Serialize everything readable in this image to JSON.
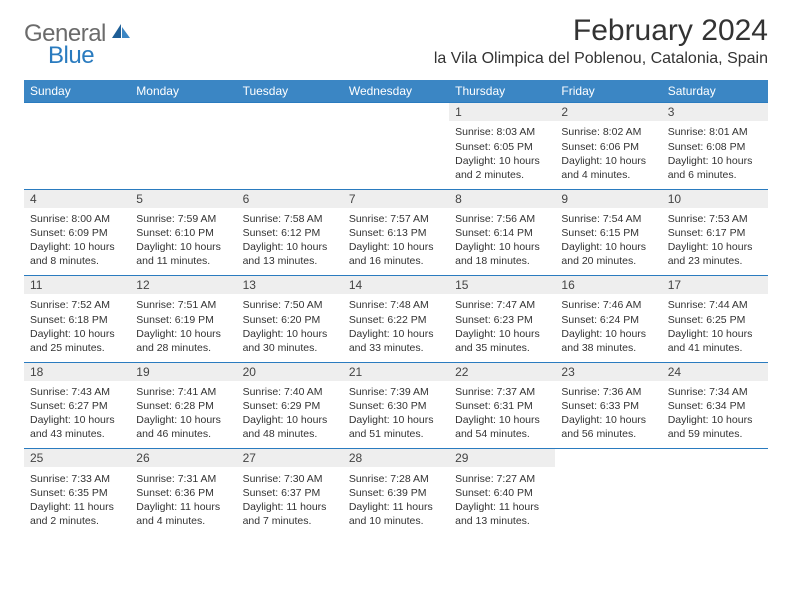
{
  "logo": {
    "word1": "General",
    "word2": "Blue"
  },
  "title": "February 2024",
  "location": "la Vila Olimpica del Poblenou, Catalonia, Spain",
  "colors": {
    "header_bg": "#3b86c4",
    "header_text": "#ffffff",
    "daynum_bg": "#eeeeee",
    "border": "#2a7bbf",
    "logo_gray": "#6b6b6b",
    "logo_blue": "#2a7bbf",
    "body_text": "#333333"
  },
  "day_headers": [
    "Sunday",
    "Monday",
    "Tuesday",
    "Wednesday",
    "Thursday",
    "Friday",
    "Saturday"
  ],
  "weeks": [
    [
      {
        "num": "",
        "sunrise": "",
        "sunset": "",
        "daylight": ""
      },
      {
        "num": "",
        "sunrise": "",
        "sunset": "",
        "daylight": ""
      },
      {
        "num": "",
        "sunrise": "",
        "sunset": "",
        "daylight": ""
      },
      {
        "num": "",
        "sunrise": "",
        "sunset": "",
        "daylight": ""
      },
      {
        "num": "1",
        "sunrise": "Sunrise: 8:03 AM",
        "sunset": "Sunset: 6:05 PM",
        "daylight": "Daylight: 10 hours and 2 minutes."
      },
      {
        "num": "2",
        "sunrise": "Sunrise: 8:02 AM",
        "sunset": "Sunset: 6:06 PM",
        "daylight": "Daylight: 10 hours and 4 minutes."
      },
      {
        "num": "3",
        "sunrise": "Sunrise: 8:01 AM",
        "sunset": "Sunset: 6:08 PM",
        "daylight": "Daylight: 10 hours and 6 minutes."
      }
    ],
    [
      {
        "num": "4",
        "sunrise": "Sunrise: 8:00 AM",
        "sunset": "Sunset: 6:09 PM",
        "daylight": "Daylight: 10 hours and 8 minutes."
      },
      {
        "num": "5",
        "sunrise": "Sunrise: 7:59 AM",
        "sunset": "Sunset: 6:10 PM",
        "daylight": "Daylight: 10 hours and 11 minutes."
      },
      {
        "num": "6",
        "sunrise": "Sunrise: 7:58 AM",
        "sunset": "Sunset: 6:12 PM",
        "daylight": "Daylight: 10 hours and 13 minutes."
      },
      {
        "num": "7",
        "sunrise": "Sunrise: 7:57 AM",
        "sunset": "Sunset: 6:13 PM",
        "daylight": "Daylight: 10 hours and 16 minutes."
      },
      {
        "num": "8",
        "sunrise": "Sunrise: 7:56 AM",
        "sunset": "Sunset: 6:14 PM",
        "daylight": "Daylight: 10 hours and 18 minutes."
      },
      {
        "num": "9",
        "sunrise": "Sunrise: 7:54 AM",
        "sunset": "Sunset: 6:15 PM",
        "daylight": "Daylight: 10 hours and 20 minutes."
      },
      {
        "num": "10",
        "sunrise": "Sunrise: 7:53 AM",
        "sunset": "Sunset: 6:17 PM",
        "daylight": "Daylight: 10 hours and 23 minutes."
      }
    ],
    [
      {
        "num": "11",
        "sunrise": "Sunrise: 7:52 AM",
        "sunset": "Sunset: 6:18 PM",
        "daylight": "Daylight: 10 hours and 25 minutes."
      },
      {
        "num": "12",
        "sunrise": "Sunrise: 7:51 AM",
        "sunset": "Sunset: 6:19 PM",
        "daylight": "Daylight: 10 hours and 28 minutes."
      },
      {
        "num": "13",
        "sunrise": "Sunrise: 7:50 AM",
        "sunset": "Sunset: 6:20 PM",
        "daylight": "Daylight: 10 hours and 30 minutes."
      },
      {
        "num": "14",
        "sunrise": "Sunrise: 7:48 AM",
        "sunset": "Sunset: 6:22 PM",
        "daylight": "Daylight: 10 hours and 33 minutes."
      },
      {
        "num": "15",
        "sunrise": "Sunrise: 7:47 AM",
        "sunset": "Sunset: 6:23 PM",
        "daylight": "Daylight: 10 hours and 35 minutes."
      },
      {
        "num": "16",
        "sunrise": "Sunrise: 7:46 AM",
        "sunset": "Sunset: 6:24 PM",
        "daylight": "Daylight: 10 hours and 38 minutes."
      },
      {
        "num": "17",
        "sunrise": "Sunrise: 7:44 AM",
        "sunset": "Sunset: 6:25 PM",
        "daylight": "Daylight: 10 hours and 41 minutes."
      }
    ],
    [
      {
        "num": "18",
        "sunrise": "Sunrise: 7:43 AM",
        "sunset": "Sunset: 6:27 PM",
        "daylight": "Daylight: 10 hours and 43 minutes."
      },
      {
        "num": "19",
        "sunrise": "Sunrise: 7:41 AM",
        "sunset": "Sunset: 6:28 PM",
        "daylight": "Daylight: 10 hours and 46 minutes."
      },
      {
        "num": "20",
        "sunrise": "Sunrise: 7:40 AM",
        "sunset": "Sunset: 6:29 PM",
        "daylight": "Daylight: 10 hours and 48 minutes."
      },
      {
        "num": "21",
        "sunrise": "Sunrise: 7:39 AM",
        "sunset": "Sunset: 6:30 PM",
        "daylight": "Daylight: 10 hours and 51 minutes."
      },
      {
        "num": "22",
        "sunrise": "Sunrise: 7:37 AM",
        "sunset": "Sunset: 6:31 PM",
        "daylight": "Daylight: 10 hours and 54 minutes."
      },
      {
        "num": "23",
        "sunrise": "Sunrise: 7:36 AM",
        "sunset": "Sunset: 6:33 PM",
        "daylight": "Daylight: 10 hours and 56 minutes."
      },
      {
        "num": "24",
        "sunrise": "Sunrise: 7:34 AM",
        "sunset": "Sunset: 6:34 PM",
        "daylight": "Daylight: 10 hours and 59 minutes."
      }
    ],
    [
      {
        "num": "25",
        "sunrise": "Sunrise: 7:33 AM",
        "sunset": "Sunset: 6:35 PM",
        "daylight": "Daylight: 11 hours and 2 minutes."
      },
      {
        "num": "26",
        "sunrise": "Sunrise: 7:31 AM",
        "sunset": "Sunset: 6:36 PM",
        "daylight": "Daylight: 11 hours and 4 minutes."
      },
      {
        "num": "27",
        "sunrise": "Sunrise: 7:30 AM",
        "sunset": "Sunset: 6:37 PM",
        "daylight": "Daylight: 11 hours and 7 minutes."
      },
      {
        "num": "28",
        "sunrise": "Sunrise: 7:28 AM",
        "sunset": "Sunset: 6:39 PM",
        "daylight": "Daylight: 11 hours and 10 minutes."
      },
      {
        "num": "29",
        "sunrise": "Sunrise: 7:27 AM",
        "sunset": "Sunset: 6:40 PM",
        "daylight": "Daylight: 11 hours and 13 minutes."
      },
      {
        "num": "",
        "sunrise": "",
        "sunset": "",
        "daylight": ""
      },
      {
        "num": "",
        "sunrise": "",
        "sunset": "",
        "daylight": ""
      }
    ]
  ]
}
